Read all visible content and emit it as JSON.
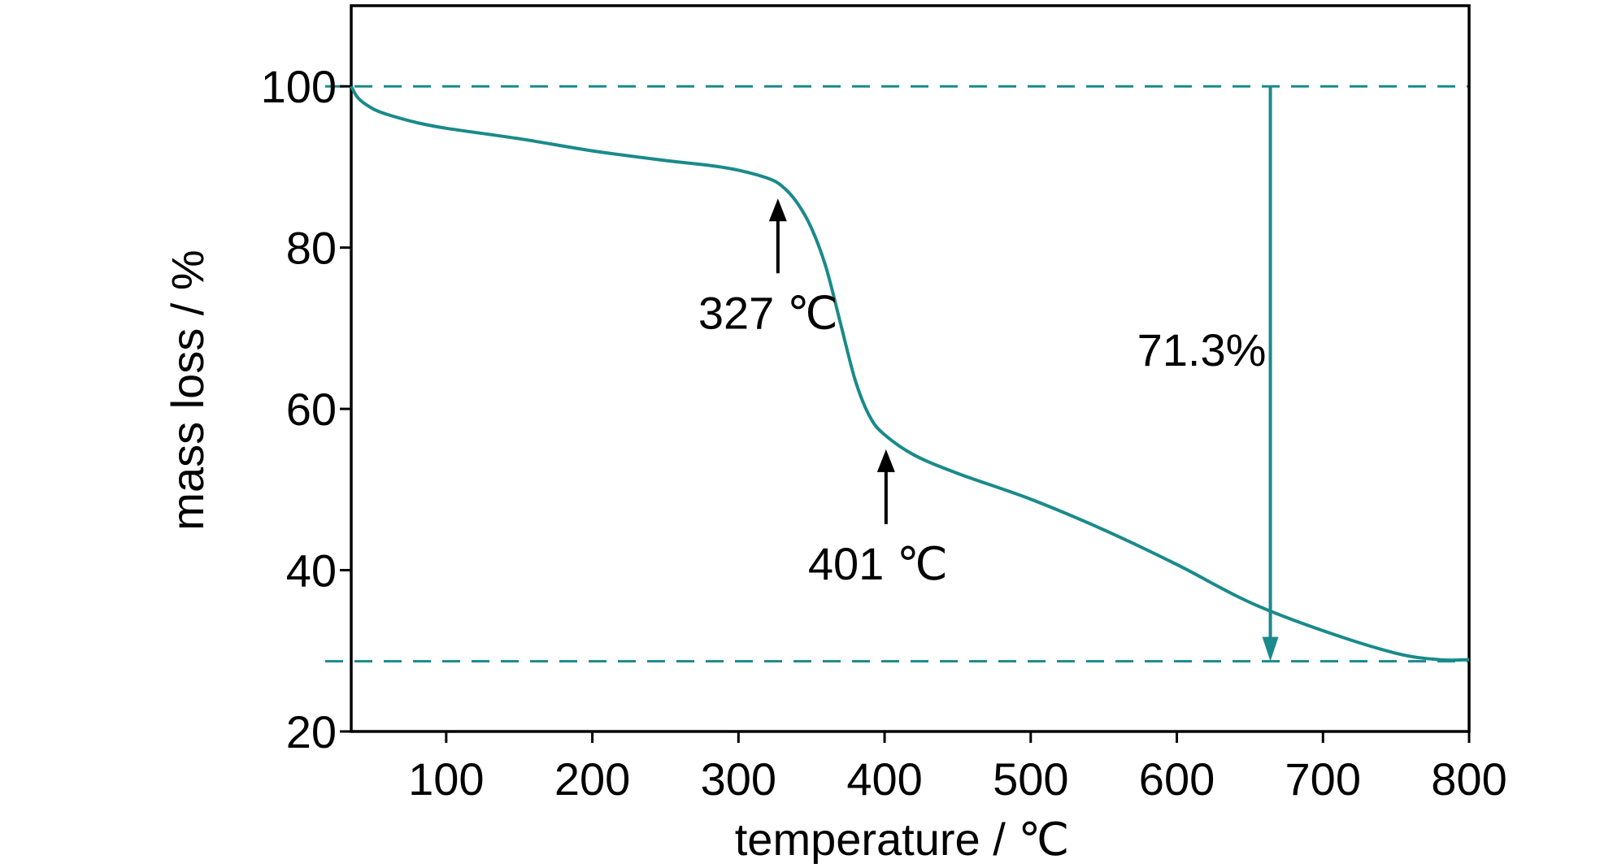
{
  "chart_data": {
    "type": "line",
    "title": "",
    "xlabel": "temperature / ℃",
    "ylabel": "mass loss / %",
    "xlim": [
      35,
      800
    ],
    "ylim": [
      20,
      110
    ],
    "grid": false,
    "x_ticks": [
      100,
      200,
      300,
      400,
      500,
      600,
      700,
      800
    ],
    "x_tick_labels": [
      "100",
      "200",
      "300",
      "400",
      "500",
      "600",
      "700",
      "800"
    ],
    "y_ticks": [
      20,
      40,
      60,
      80,
      100
    ],
    "y_tick_labels": [
      "20",
      "40",
      "60",
      "80",
      "100"
    ],
    "series": [
      {
        "color": "#1a8a8a",
        "x": [
          35,
          40,
          50,
          60,
          80,
          100,
          150,
          200,
          250,
          280,
          300,
          320,
          330,
          340,
          350,
          360,
          370,
          380,
          390,
          400,
          420,
          450,
          500,
          550,
          600,
          650,
          700,
          750,
          780,
          800
        ],
        "y": [
          100,
          98.5,
          97.2,
          96.5,
          95.5,
          94.8,
          93.5,
          92.0,
          90.8,
          90.2,
          89.6,
          88.6,
          87.6,
          85.6,
          82.4,
          77.5,
          70.5,
          63.5,
          59.0,
          56.8,
          54.3,
          52.0,
          48.8,
          45.0,
          40.7,
          36.0,
          32.5,
          29.7,
          28.9,
          28.9
        ]
      }
    ],
    "reference_lines": [
      {
        "axis": "y",
        "value": 100,
        "style": "dashed",
        "color": "#1a8a8a"
      },
      {
        "axis": "y",
        "value": 28.7,
        "style": "dashed",
        "color": "#1a8a8a"
      }
    ],
    "annotations": [
      {
        "text": "327 ℃",
        "x": 327,
        "y": 87.9,
        "marker": "arrow-up",
        "color": "#000000"
      },
      {
        "text": "401 ℃",
        "x": 401,
        "y": 56.8,
        "marker": "arrow-up",
        "color": "#000000"
      },
      {
        "text": "71.3%",
        "x": 664,
        "from": 100,
        "to": 28.7,
        "marker": "arrow-down",
        "color": "#1a8a8a"
      }
    ]
  }
}
